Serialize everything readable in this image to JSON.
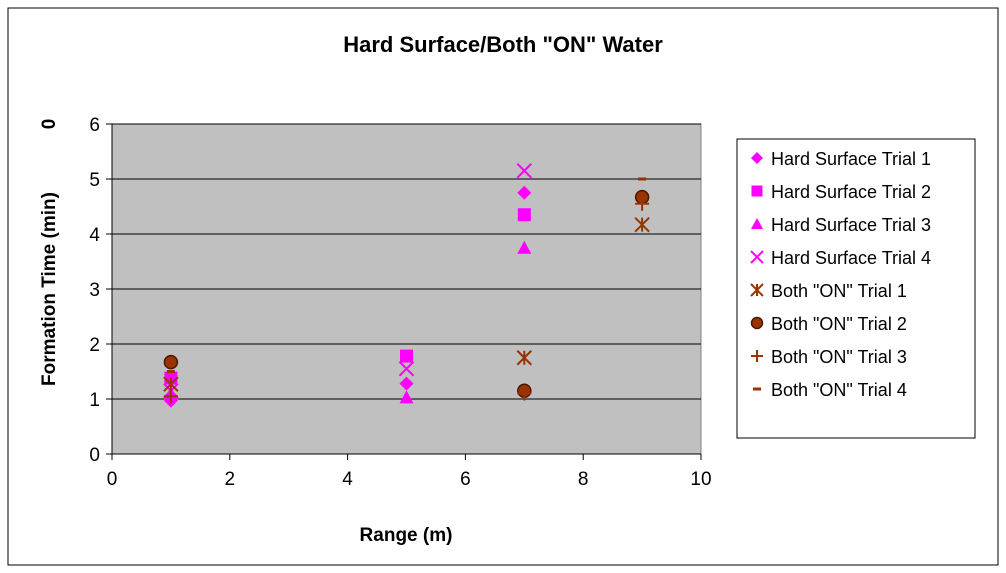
{
  "chart_data": {
    "type": "scatter",
    "title": "Hard Surface/Both \"ON\" Water",
    "xlabel": "Range (m)",
    "ylabel": "Formation Time (min)",
    "secondary_ylabel": "0",
    "xlim": [
      0,
      10
    ],
    "ylim": [
      0,
      6
    ],
    "xticks": [
      "0",
      "2",
      "4",
      "6",
      "8",
      "10"
    ],
    "yticks": [
      "0",
      "1",
      "2",
      "3",
      "4",
      "5",
      "6"
    ],
    "grid": "horizontal",
    "legend_position": "right",
    "plot_background": "#c0c0c0",
    "series": [
      {
        "name": "Hard Surface Trial 1",
        "marker": "diamond",
        "color": "#ff00ff",
        "points": [
          [
            1,
            0.97
          ],
          [
            5,
            1.28
          ],
          [
            7,
            4.75
          ]
        ]
      },
      {
        "name": "Hard Surface Trial 2",
        "marker": "square",
        "color": "#ff00ff",
        "points": [
          [
            1,
            1.38
          ],
          [
            5,
            1.78
          ],
          [
            7,
            4.35
          ]
        ]
      },
      {
        "name": "Hard Surface Trial 3",
        "marker": "triangle",
        "color": "#ff00ff",
        "points": [
          [
            1,
            1.1
          ],
          [
            5,
            1.03
          ],
          [
            7,
            3.75
          ]
        ]
      },
      {
        "name": "Hard Surface Trial 4",
        "marker": "x",
        "color": "#ff00ff",
        "points": [
          [
            1,
            1.15
          ],
          [
            5,
            1.55
          ],
          [
            7,
            5.15
          ]
        ]
      },
      {
        "name": "Both \"ON\" Trial 1",
        "marker": "asterisk",
        "color": "#993300",
        "points": [
          [
            1,
            1.27
          ],
          [
            7,
            1.75
          ],
          [
            9,
            4.17
          ]
        ]
      },
      {
        "name": "Both \"ON\" Trial 2",
        "marker": "circle",
        "color": "#993300",
        "points": [
          [
            1,
            1.67
          ],
          [
            7,
            1.15
          ],
          [
            9,
            4.67
          ]
        ]
      },
      {
        "name": "Both \"ON\" Trial 3",
        "marker": "plus",
        "color": "#993300",
        "points": [
          [
            1,
            1.05
          ],
          [
            7,
            1.1
          ],
          [
            9,
            4.55
          ]
        ]
      },
      {
        "name": "Both \"ON\" Trial 4",
        "marker": "dash",
        "color": "#993300",
        "points": [
          [
            1,
            1.5
          ],
          [
            9,
            5.0
          ]
        ]
      }
    ]
  }
}
